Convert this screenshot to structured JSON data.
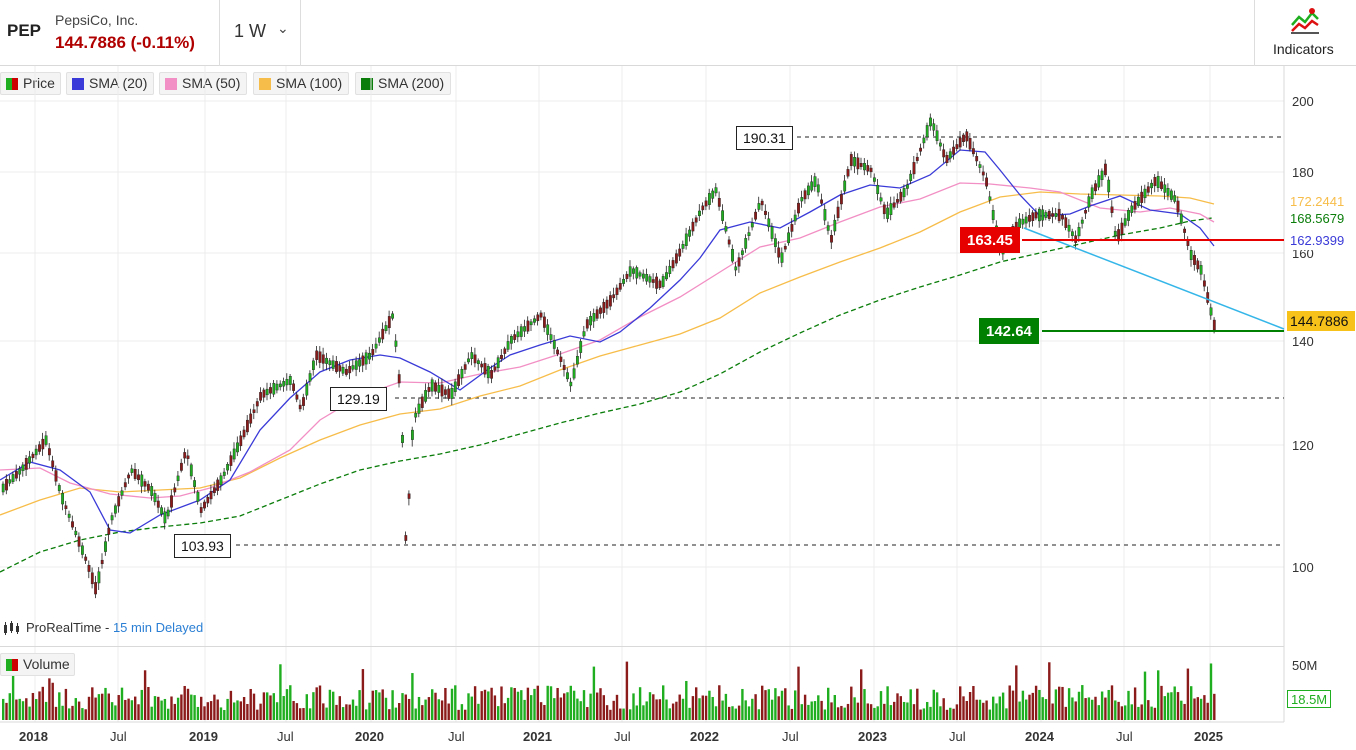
{
  "header": {
    "ticker": "PEP",
    "company": "PepsiCo, Inc.",
    "price_change": "144.7886 (-0.11%)",
    "timeframe": "1 W",
    "indicators_label": "Indicators"
  },
  "legend": {
    "items": [
      {
        "label": "Price",
        "color": "#1fae1f"
      },
      {
        "label": "SMA (20)",
        "color": "#3a3ad8"
      },
      {
        "label": "SMA (50)",
        "color": "#f28fc4"
      },
      {
        "label": "SMA (100)",
        "color": "#f7bd4a"
      },
      {
        "label": "SMA (200)",
        "color": "#0a7d0a"
      }
    ]
  },
  "price_axis": {
    "ticks": [
      "200",
      "180",
      "160",
      "140",
      "120",
      "100"
    ]
  },
  "price_tags": {
    "sma100": "172.2441",
    "sma200": "168.5679",
    "sma20": "162.9399",
    "last": "144.7886"
  },
  "flags": {
    "high": "190.31",
    "mid": "129.19",
    "low": "103.93",
    "resistance": "163.45",
    "support": "142.64"
  },
  "source": {
    "name": "ProRealTime - ",
    "delay": "15 min Delayed"
  },
  "volume": {
    "label": "Volume",
    "ticks": [
      "50M"
    ],
    "current": "18.5M"
  },
  "date_axis": [
    {
      "label": "2018",
      "year": true
    },
    {
      "label": "Jul",
      "year": false
    },
    {
      "label": "2019",
      "year": true
    },
    {
      "label": "Jul",
      "year": false
    },
    {
      "label": "2020",
      "year": true
    },
    {
      "label": "Jul",
      "year": false
    },
    {
      "label": "2021",
      "year": true
    },
    {
      "label": "Jul",
      "year": false
    },
    {
      "label": "2022",
      "year": true
    },
    {
      "label": "Jul",
      "year": false
    },
    {
      "label": "2023",
      "year": true
    },
    {
      "label": "Jul",
      "year": false
    },
    {
      "label": "2024",
      "year": true
    },
    {
      "label": "Jul",
      "year": false
    },
    {
      "label": "2025",
      "year": true
    }
  ],
  "colors": {
    "up": "#1fae1f",
    "down": "#8b1a1a",
    "trendline": "#35b6e8",
    "resistance": "#e60000",
    "support": "#008000"
  }
}
